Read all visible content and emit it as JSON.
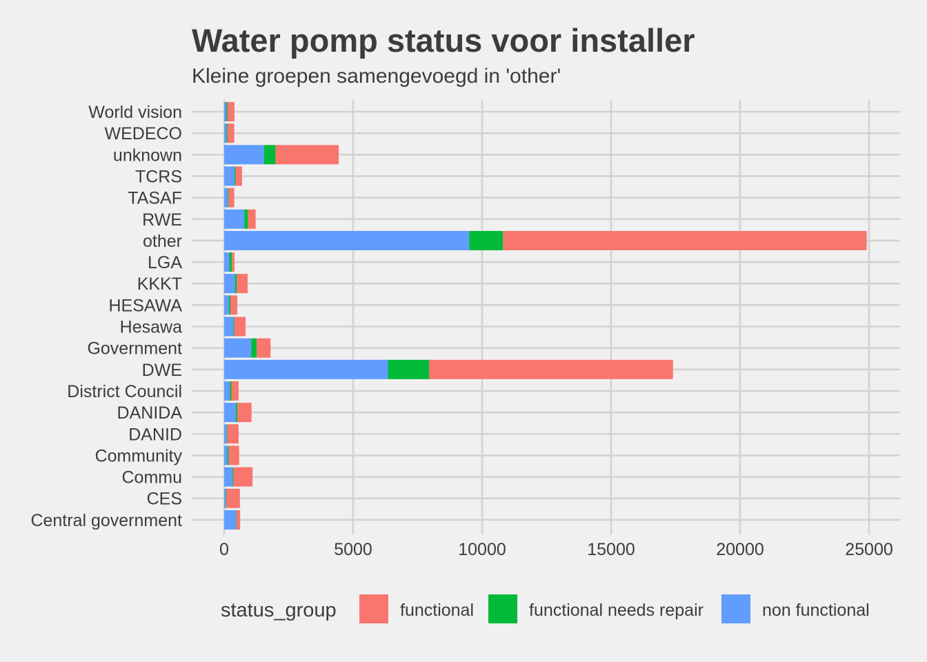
{
  "chart_data": {
    "type": "bar",
    "orientation": "horizontal",
    "stacked": true,
    "title": "Water pomp status voor installer",
    "subtitle": "Kleine groepen samengevoegd in 'other'",
    "categories": [
      "World vision",
      "WEDECO",
      "unknown",
      "TCRS",
      "TASAF",
      "RWE",
      "other",
      "LGA",
      "KKKT",
      "HESAWA",
      "Hesawa",
      "Government",
      "DWE",
      "District Council",
      "DANIDA",
      "DANID",
      "Community",
      "Commu",
      "CES",
      "Central government"
    ],
    "series": [
      {
        "name": "non functional",
        "color": "#619cff",
        "values": [
          80,
          90,
          1550,
          400,
          140,
          780,
          9500,
          200,
          420,
          180,
          360,
          1050,
          6350,
          220,
          450,
          100,
          130,
          330,
          60,
          450
        ]
      },
      {
        "name": "functional needs repair",
        "color": "#00ba38",
        "values": [
          40,
          40,
          440,
          40,
          30,
          140,
          1310,
          100,
          70,
          60,
          30,
          210,
          1600,
          60,
          60,
          20,
          50,
          30,
          20,
          20
        ]
      },
      {
        "name": "functional",
        "color": "#f8766d",
        "values": [
          280,
          260,
          2450,
          250,
          220,
          300,
          14100,
          100,
          420,
          270,
          440,
          540,
          9450,
          280,
          550,
          440,
          400,
          740,
          530,
          150
        ]
      }
    ],
    "xlim": [
      0,
      26000
    ],
    "xticks": [
      "0",
      "5000",
      "10000",
      "15000",
      "20000",
      "25000"
    ],
    "xtick_values": [
      0,
      5000,
      10000,
      15000,
      20000,
      25000
    ],
    "xlabel": "",
    "ylabel": "",
    "grid": true,
    "legend": {
      "title": "status_group",
      "position": "bottom",
      "entries": [
        "functional",
        "functional needs repair",
        "non functional"
      ],
      "colors": [
        "#f8766d",
        "#00ba38",
        "#619cff"
      ]
    }
  }
}
